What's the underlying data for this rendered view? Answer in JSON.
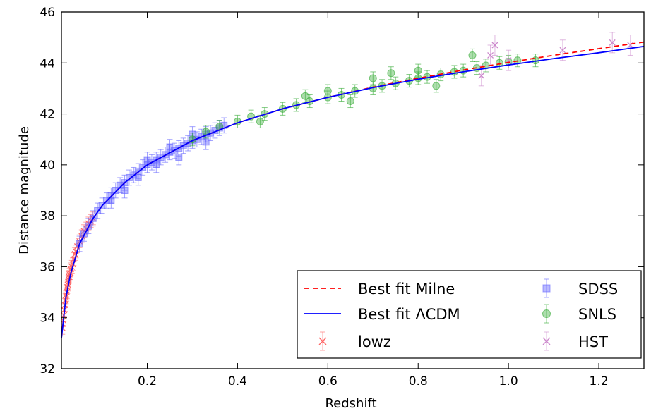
{
  "chart_data": {
    "type": "scatter",
    "xlabel": "Redshift",
    "ylabel": "Distance magnitude",
    "xlim": [
      0.01,
      1.3
    ],
    "ylim": [
      32,
      46
    ],
    "xticks": [
      0.2,
      0.4,
      0.6,
      0.8,
      1.0,
      1.2
    ],
    "xtick_labels": [
      "0.2",
      "0.4",
      "0.6",
      "0.8",
      "1.0",
      "1.2"
    ],
    "yticks": [
      32,
      34,
      36,
      38,
      40,
      42,
      44,
      46
    ],
    "ytick_labels": [
      "32",
      "34",
      "36",
      "38",
      "40",
      "42",
      "44",
      "46"
    ],
    "grid": false,
    "legend_position": "bottom-right",
    "lines": [
      {
        "name": "Best fit Milne",
        "color": "#ff0000",
        "style": "dashed",
        "x": [
          0.01,
          0.02,
          0.03,
          0.05,
          0.08,
          0.1,
          0.15,
          0.2,
          0.3,
          0.4,
          0.5,
          0.6,
          0.7,
          0.8,
          0.9,
          1.0,
          1.1,
          1.2,
          1.3
        ],
        "y": [
          33.2,
          34.8,
          35.7,
          36.9,
          37.9,
          38.4,
          39.3,
          40.0,
          40.95,
          41.65,
          42.2,
          42.65,
          43.05,
          43.4,
          43.72,
          44.02,
          44.3,
          44.56,
          44.82
        ]
      },
      {
        "name": "Best fit ΛCDM",
        "color": "#0000ff",
        "style": "solid",
        "x": [
          0.01,
          0.02,
          0.03,
          0.05,
          0.08,
          0.1,
          0.15,
          0.2,
          0.3,
          0.4,
          0.5,
          0.6,
          0.7,
          0.8,
          0.9,
          1.0,
          1.1,
          1.2,
          1.3
        ],
        "y": [
          33.2,
          34.8,
          35.7,
          36.9,
          37.9,
          38.4,
          39.3,
          40.0,
          40.95,
          41.65,
          42.2,
          42.65,
          43.03,
          43.36,
          43.65,
          43.92,
          44.17,
          44.4,
          44.65
        ]
      }
    ],
    "series": [
      {
        "name": "lowz",
        "marker": "x",
        "color": "#ff6666",
        "x": [
          0.012,
          0.014,
          0.015,
          0.016,
          0.018,
          0.019,
          0.02,
          0.021,
          0.022,
          0.023,
          0.024,
          0.025,
          0.026,
          0.027,
          0.028,
          0.03,
          0.031,
          0.033,
          0.035,
          0.037,
          0.04,
          0.042,
          0.045,
          0.05,
          0.055,
          0.06,
          0.065,
          0.07,
          0.075,
          0.08
        ],
        "y": [
          33.6,
          33.9,
          34.1,
          34.3,
          34.5,
          34.7,
          34.8,
          34.9,
          35.0,
          35.2,
          35.3,
          35.4,
          35.5,
          35.6,
          35.7,
          35.75,
          35.9,
          36.0,
          36.1,
          36.3,
          36.5,
          36.6,
          36.8,
          37.0,
          37.2,
          37.4,
          37.5,
          37.7,
          37.8,
          37.9
        ],
        "err": 0.25
      },
      {
        "name": "SDSS",
        "marker": "square",
        "color": "#6666ff",
        "x": [
          0.05,
          0.06,
          0.07,
          0.08,
          0.09,
          0.1,
          0.11,
          0.12,
          0.13,
          0.14,
          0.15,
          0.16,
          0.17,
          0.18,
          0.19,
          0.2,
          0.21,
          0.22,
          0.23,
          0.24,
          0.25,
          0.26,
          0.27,
          0.28,
          0.29,
          0.3,
          0.31,
          0.32,
          0.33,
          0.34,
          0.35,
          0.36,
          0.37,
          0.12,
          0.15,
          0.18,
          0.2,
          0.22,
          0.25,
          0.27,
          0.3,
          0.33
        ],
        "y": [
          36.9,
          37.3,
          37.6,
          37.9,
          38.2,
          38.4,
          38.6,
          38.8,
          39.0,
          39.2,
          39.3,
          39.5,
          39.6,
          39.75,
          39.9,
          40.0,
          40.1,
          40.2,
          40.3,
          40.4,
          40.5,
          40.55,
          40.65,
          40.75,
          40.85,
          40.95,
          41.0,
          41.1,
          41.2,
          41.25,
          41.35,
          41.45,
          41.55,
          38.6,
          39.0,
          39.5,
          40.2,
          40.0,
          40.7,
          40.3,
          41.2,
          40.9
        ],
        "err": 0.3
      },
      {
        "name": "SNLS",
        "marker": "circle",
        "color": "#33aa33",
        "x": [
          0.3,
          0.33,
          0.36,
          0.4,
          0.43,
          0.46,
          0.5,
          0.53,
          0.56,
          0.6,
          0.63,
          0.66,
          0.7,
          0.72,
          0.75,
          0.78,
          0.8,
          0.82,
          0.85,
          0.88,
          0.9,
          0.93,
          0.95,
          0.98,
          1.0,
          1.02,
          1.06,
          0.45,
          0.55,
          0.65,
          0.74,
          0.84,
          0.92,
          0.6,
          0.7,
          0.8
        ],
        "y": [
          41.0,
          41.3,
          41.5,
          41.7,
          41.9,
          42.0,
          42.2,
          42.35,
          42.5,
          42.65,
          42.75,
          42.9,
          43.0,
          43.1,
          43.2,
          43.3,
          43.4,
          43.45,
          43.55,
          43.65,
          43.7,
          43.8,
          43.9,
          44.0,
          44.05,
          44.1,
          44.1,
          41.7,
          42.7,
          42.5,
          43.6,
          43.1,
          44.3,
          42.9,
          43.4,
          43.7
        ],
        "err": 0.25
      },
      {
        "name": "HST",
        "marker": "x",
        "color": "#cc88cc",
        "x": [
          0.94,
          0.96,
          0.97,
          1.0,
          1.12,
          1.23,
          1.27
        ],
        "y": [
          43.5,
          44.3,
          44.7,
          44.1,
          44.5,
          44.8,
          44.7
        ],
        "err": 0.4
      }
    ],
    "legend": [
      {
        "label": "Best fit Milne",
        "color": "#ff0000",
        "kind": "dashed"
      },
      {
        "label": "Best fit ΛCDM",
        "color": "#0000ff",
        "kind": "solid"
      },
      {
        "label": "lowz",
        "color": "#ff6666",
        "kind": "x"
      },
      {
        "label": "SDSS",
        "color": "#6666ff",
        "kind": "square"
      },
      {
        "label": "SNLS",
        "color": "#33aa33",
        "kind": "circle"
      },
      {
        "label": "HST",
        "color": "#cc88cc",
        "kind": "x"
      }
    ]
  }
}
